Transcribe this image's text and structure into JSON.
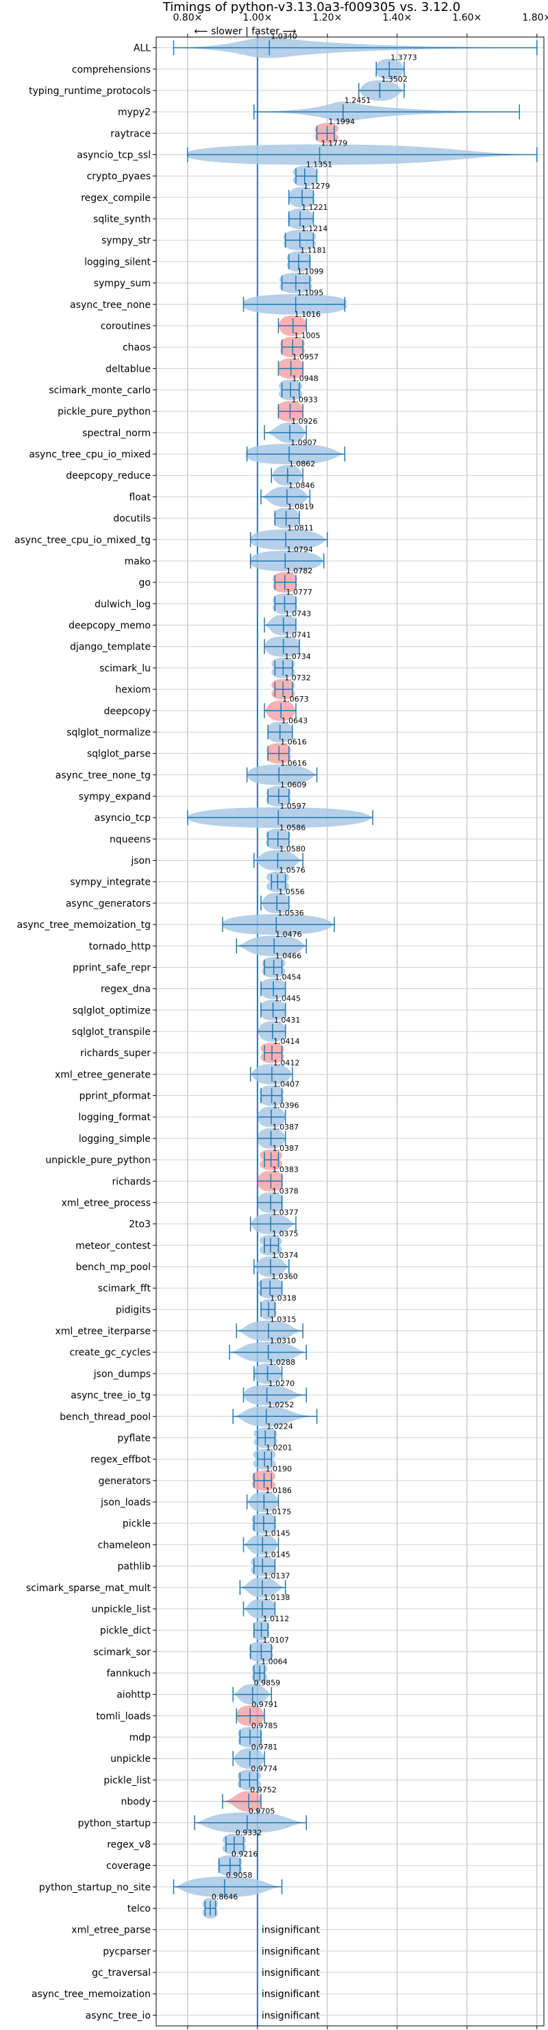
{
  "chart_data": {
    "type": "violin",
    "title": "Timings of python-v3.13.0a3-f009305 vs. 3.12.0",
    "direction_label": "⟵ slower | faster ⟶",
    "x_ticks": [
      {
        "value": 0.8,
        "label": "0.80×"
      },
      {
        "value": 1.0,
        "label": "1.00×"
      },
      {
        "value": 1.2,
        "label": "1.20×"
      },
      {
        "value": 1.4,
        "label": "1.40×"
      },
      {
        "value": 1.6,
        "label": "1.60×"
      },
      {
        "value": 1.8,
        "label": "1.80×"
      }
    ],
    "xlim": [
      0.71,
      1.82
    ],
    "reference_line": 1.0,
    "grid": true,
    "colors": {
      "normal": "#a8c8e4",
      "highlight": "#f4a6a8",
      "line": "#1f77b4"
    },
    "insignificant_label": "insignificant",
    "benchmarks": [
      {
        "name": "ALL",
        "value": 1.034,
        "value_label": "1.0340",
        "min": 0.76,
        "max": 1.8,
        "width": 0.06,
        "highlight": false
      },
      {
        "name": "comprehensions",
        "value": 1.3773,
        "value_label": "1.3773",
        "min": 1.34,
        "max": 1.42,
        "width": 0.03,
        "highlight": false
      },
      {
        "name": "typing_runtime_protocols",
        "value": 1.3502,
        "value_label": "1.3502",
        "min": 1.29,
        "max": 1.42,
        "width": 0.04,
        "highlight": false
      },
      {
        "name": "mypy2",
        "value": 1.2451,
        "value_label": "1.2451",
        "min": 0.99,
        "max": 1.75,
        "width": 0.03,
        "highlight": false
      },
      {
        "name": "raytrace",
        "value": 1.1994,
        "value_label": "1.1994",
        "min": 1.17,
        "max": 1.22,
        "width": 0.03,
        "highlight": true
      },
      {
        "name": "asyncio_tcp_ssl",
        "value": 1.1779,
        "value_label": "1.1779",
        "min": 0.8,
        "max": 1.8,
        "width": 0.3,
        "highlight": false
      },
      {
        "name": "crypto_pyaes",
        "value": 1.1351,
        "value_label": "1.1351",
        "min": 1.11,
        "max": 1.17,
        "width": 0.03,
        "highlight": false
      },
      {
        "name": "regex_compile",
        "value": 1.1279,
        "value_label": "1.1279",
        "min": 1.09,
        "max": 1.16,
        "width": 0.03,
        "highlight": false
      },
      {
        "name": "sqlite_synth",
        "value": 1.1221,
        "value_label": "1.1221",
        "min": 1.09,
        "max": 1.16,
        "width": 0.03,
        "highlight": false
      },
      {
        "name": "sympy_str",
        "value": 1.1214,
        "value_label": "1.1214",
        "min": 1.08,
        "max": 1.16,
        "width": 0.04,
        "highlight": false
      },
      {
        "name": "logging_silent",
        "value": 1.1181,
        "value_label": "1.1181",
        "min": 1.09,
        "max": 1.15,
        "width": 0.03,
        "highlight": false
      },
      {
        "name": "sympy_sum",
        "value": 1.1099,
        "value_label": "1.1099",
        "min": 1.07,
        "max": 1.15,
        "width": 0.04,
        "highlight": false
      },
      {
        "name": "async_tree_none",
        "value": 1.1095,
        "value_label": "1.1095",
        "min": 0.96,
        "max": 1.25,
        "width": 0.12,
        "highlight": false
      },
      {
        "name": "coroutines",
        "value": 1.1016,
        "value_label": "1.1016",
        "min": 1.06,
        "max": 1.14,
        "width": 0.03,
        "highlight": true
      },
      {
        "name": "chaos",
        "value": 1.1005,
        "value_label": "1.1005",
        "min": 1.07,
        "max": 1.13,
        "width": 0.03,
        "highlight": true
      },
      {
        "name": "deltablue",
        "value": 1.0957,
        "value_label": "1.0957",
        "min": 1.06,
        "max": 1.13,
        "width": 0.03,
        "highlight": true
      },
      {
        "name": "scimark_monte_carlo",
        "value": 1.0948,
        "value_label": "1.0948",
        "min": 1.07,
        "max": 1.12,
        "width": 0.03,
        "highlight": false
      },
      {
        "name": "pickle_pure_python",
        "value": 1.0933,
        "value_label": "1.0933",
        "min": 1.06,
        "max": 1.13,
        "width": 0.03,
        "highlight": true
      },
      {
        "name": "spectral_norm",
        "value": 1.0926,
        "value_label": "1.0926",
        "min": 1.02,
        "max": 1.14,
        "width": 0.03,
        "highlight": false
      },
      {
        "name": "async_tree_cpu_io_mixed",
        "value": 1.0907,
        "value_label": "1.0907",
        "min": 0.97,
        "max": 1.25,
        "width": 0.1,
        "highlight": false
      },
      {
        "name": "deepcopy_reduce",
        "value": 1.0862,
        "value_label": "1.0862",
        "min": 1.04,
        "max": 1.13,
        "width": 0.03,
        "highlight": false
      },
      {
        "name": "float",
        "value": 1.0846,
        "value_label": "1.0846",
        "min": 1.01,
        "max": 1.15,
        "width": 0.04,
        "highlight": false
      },
      {
        "name": "docutils",
        "value": 1.0819,
        "value_label": "1.0819",
        "min": 1.05,
        "max": 1.12,
        "width": 0.03,
        "highlight": false
      },
      {
        "name": "async_tree_cpu_io_mixed_tg",
        "value": 1.0811,
        "value_label": "1.0811",
        "min": 0.98,
        "max": 1.2,
        "width": 0.08,
        "highlight": false
      },
      {
        "name": "mako",
        "value": 1.0794,
        "value_label": "1.0794",
        "min": 0.98,
        "max": 1.19,
        "width": 0.08,
        "highlight": false
      },
      {
        "name": "go",
        "value": 1.0782,
        "value_label": "1.0782",
        "min": 1.05,
        "max": 1.11,
        "width": 0.03,
        "highlight": true
      },
      {
        "name": "dulwich_log",
        "value": 1.0777,
        "value_label": "1.0777",
        "min": 1.05,
        "max": 1.11,
        "width": 0.03,
        "highlight": false
      },
      {
        "name": "deepcopy_memo",
        "value": 1.0743,
        "value_label": "1.0743",
        "min": 1.02,
        "max": 1.11,
        "width": 0.03,
        "highlight": false
      },
      {
        "name": "django_template",
        "value": 1.0741,
        "value_label": "1.0741",
        "min": 1.02,
        "max": 1.12,
        "width": 0.04,
        "highlight": false
      },
      {
        "name": "scimark_lu",
        "value": 1.0734,
        "value_label": "1.0734",
        "min": 1.05,
        "max": 1.1,
        "width": 0.03,
        "highlight": false
      },
      {
        "name": "hexiom",
        "value": 1.0732,
        "value_label": "1.0732",
        "min": 1.05,
        "max": 1.1,
        "width": 0.03,
        "highlight": true
      },
      {
        "name": "deepcopy",
        "value": 1.0673,
        "value_label": "1.0673",
        "min": 1.02,
        "max": 1.11,
        "width": 0.03,
        "highlight": true
      },
      {
        "name": "sqlglot_normalize",
        "value": 1.0643,
        "value_label": "1.0643",
        "min": 1.03,
        "max": 1.1,
        "width": 0.03,
        "highlight": false
      },
      {
        "name": "sqlglot_parse",
        "value": 1.0616,
        "value_label": "1.0616",
        "min": 1.03,
        "max": 1.09,
        "width": 0.03,
        "highlight": true
      },
      {
        "name": "async_tree_none_tg",
        "value": 1.0616,
        "value_label": "1.0616",
        "min": 0.97,
        "max": 1.17,
        "width": 0.07,
        "highlight": false
      },
      {
        "name": "sympy_expand",
        "value": 1.0609,
        "value_label": "1.0609",
        "min": 1.03,
        "max": 1.09,
        "width": 0.03,
        "highlight": false
      },
      {
        "name": "asyncio_tcp",
        "value": 1.0597,
        "value_label": "1.0597",
        "min": 0.8,
        "max": 1.33,
        "width": 0.2,
        "highlight": false
      },
      {
        "name": "nqueens",
        "value": 1.0586,
        "value_label": "1.0586",
        "min": 1.03,
        "max": 1.09,
        "width": 0.03,
        "highlight": false
      },
      {
        "name": "json",
        "value": 1.058,
        "value_label": "1.0580",
        "min": 0.99,
        "max": 1.13,
        "width": 0.04,
        "highlight": false
      },
      {
        "name": "sympy_integrate",
        "value": 1.0576,
        "value_label": "1.0576",
        "min": 1.04,
        "max": 1.08,
        "width": 0.03,
        "highlight": false
      },
      {
        "name": "async_generators",
        "value": 1.0556,
        "value_label": "1.0556",
        "min": 1.01,
        "max": 1.09,
        "width": 0.03,
        "highlight": false
      },
      {
        "name": "async_tree_memoization_tg",
        "value": 1.0536,
        "value_label": "1.0536",
        "min": 0.9,
        "max": 1.22,
        "width": 0.12,
        "highlight": false
      },
      {
        "name": "tornado_http",
        "value": 1.0476,
        "value_label": "1.0476",
        "min": 0.94,
        "max": 1.14,
        "width": 0.06,
        "highlight": false
      },
      {
        "name": "pprint_safe_repr",
        "value": 1.0466,
        "value_label": "1.0466",
        "min": 1.02,
        "max": 1.07,
        "width": 0.03,
        "highlight": false
      },
      {
        "name": "regex_dna",
        "value": 1.0454,
        "value_label": "1.0454",
        "min": 1.01,
        "max": 1.08,
        "width": 0.03,
        "highlight": false
      },
      {
        "name": "sqlglot_optimize",
        "value": 1.0445,
        "value_label": "1.0445",
        "min": 1.01,
        "max": 1.08,
        "width": 0.03,
        "highlight": false
      },
      {
        "name": "sqlglot_transpile",
        "value": 1.0431,
        "value_label": "1.0431",
        "min": 1.0,
        "max": 1.08,
        "width": 0.03,
        "highlight": false
      },
      {
        "name": "richards_super",
        "value": 1.0414,
        "value_label": "1.0414",
        "min": 1.02,
        "max": 1.07,
        "width": 0.03,
        "highlight": true
      },
      {
        "name": "xml_etree_generate",
        "value": 1.0412,
        "value_label": "1.0412",
        "min": 0.98,
        "max": 1.1,
        "width": 0.04,
        "highlight": false
      },
      {
        "name": "pprint_pformat",
        "value": 1.0407,
        "value_label": "1.0407",
        "min": 1.01,
        "max": 1.07,
        "width": 0.03,
        "highlight": false
      },
      {
        "name": "logging_format",
        "value": 1.0396,
        "value_label": "1.0396",
        "min": 1.0,
        "max": 1.08,
        "width": 0.03,
        "highlight": false
      },
      {
        "name": "logging_simple",
        "value": 1.0387,
        "value_label": "1.0387",
        "min": 1.0,
        "max": 1.08,
        "width": 0.03,
        "highlight": false
      },
      {
        "name": "unpickle_pure_python",
        "value": 1.0387,
        "value_label": "1.0387",
        "min": 1.02,
        "max": 1.06,
        "width": 0.03,
        "highlight": true
      },
      {
        "name": "richards",
        "value": 1.0383,
        "value_label": "1.0383",
        "min": 1.0,
        "max": 1.07,
        "width": 0.03,
        "highlight": true
      },
      {
        "name": "xml_etree_process",
        "value": 1.0378,
        "value_label": "1.0378",
        "min": 1.0,
        "max": 1.07,
        "width": 0.03,
        "highlight": false
      },
      {
        "name": "2to3",
        "value": 1.0377,
        "value_label": "1.0377",
        "min": 0.98,
        "max": 1.11,
        "width": 0.04,
        "highlight": false
      },
      {
        "name": "meteor_contest",
        "value": 1.0375,
        "value_label": "1.0375",
        "min": 1.02,
        "max": 1.06,
        "width": 0.03,
        "highlight": false
      },
      {
        "name": "bench_mp_pool",
        "value": 1.0374,
        "value_label": "1.0374",
        "min": 0.99,
        "max": 1.09,
        "width": 0.03,
        "highlight": false
      },
      {
        "name": "scimark_fft",
        "value": 1.036,
        "value_label": "1.0360",
        "min": 1.01,
        "max": 1.07,
        "width": 0.03,
        "highlight": false
      },
      {
        "name": "pidigits",
        "value": 1.0318,
        "value_label": "1.0318",
        "min": 1.01,
        "max": 1.05,
        "width": 0.02,
        "highlight": false
      },
      {
        "name": "xml_etree_iterparse",
        "value": 1.0315,
        "value_label": "1.0315",
        "min": 0.94,
        "max": 1.13,
        "width": 0.05,
        "highlight": false
      },
      {
        "name": "create_gc_cycles",
        "value": 1.031,
        "value_label": "1.0310",
        "min": 0.92,
        "max": 1.14,
        "width": 0.06,
        "highlight": false
      },
      {
        "name": "json_dumps",
        "value": 1.0288,
        "value_label": "1.0288",
        "min": 0.99,
        "max": 1.07,
        "width": 0.03,
        "highlight": false
      },
      {
        "name": "async_tree_io_tg",
        "value": 1.027,
        "value_label": "1.0270",
        "min": 0.96,
        "max": 1.14,
        "width": 0.05,
        "highlight": false
      },
      {
        "name": "bench_thread_pool",
        "value": 1.0252,
        "value_label": "1.0252",
        "min": 0.93,
        "max": 1.17,
        "width": 0.05,
        "highlight": false
      },
      {
        "name": "pyflate",
        "value": 1.0224,
        "value_label": "1.0224",
        "min": 1.0,
        "max": 1.05,
        "width": 0.03,
        "highlight": false
      },
      {
        "name": "regex_effbot",
        "value": 1.0201,
        "value_label": "1.0201",
        "min": 1.0,
        "max": 1.04,
        "width": 0.03,
        "highlight": false
      },
      {
        "name": "generators",
        "value": 1.019,
        "value_label": "1.0190",
        "min": 0.99,
        "max": 1.04,
        "width": 0.03,
        "highlight": true
      },
      {
        "name": "json_loads",
        "value": 1.0186,
        "value_label": "1.0186",
        "min": 0.97,
        "max": 1.06,
        "width": 0.03,
        "highlight": false
      },
      {
        "name": "pickle",
        "value": 1.0175,
        "value_label": "1.0175",
        "min": 0.99,
        "max": 1.05,
        "width": 0.03,
        "highlight": false
      },
      {
        "name": "chameleon",
        "value": 1.0145,
        "value_label": "1.0145",
        "min": 0.96,
        "max": 1.06,
        "width": 0.03,
        "highlight": false
      },
      {
        "name": "pathlib",
        "value": 1.0145,
        "value_label": "1.0145",
        "min": 0.99,
        "max": 1.05,
        "width": 0.03,
        "highlight": false
      },
      {
        "name": "scimark_sparse_mat_mult",
        "value": 1.0137,
        "value_label": "1.0137",
        "min": 0.95,
        "max": 1.08,
        "width": 0.03,
        "highlight": false
      },
      {
        "name": "unpickle_list",
        "value": 1.0138,
        "value_label": "1.0138",
        "min": 0.96,
        "max": 1.05,
        "width": 0.03,
        "highlight": false
      },
      {
        "name": "pickle_dict",
        "value": 1.0112,
        "value_label": "1.0112",
        "min": 0.99,
        "max": 1.03,
        "width": 0.02,
        "highlight": false
      },
      {
        "name": "scimark_sor",
        "value": 1.0107,
        "value_label": "1.0107",
        "min": 0.98,
        "max": 1.04,
        "width": 0.03,
        "highlight": false
      },
      {
        "name": "fannkuch",
        "value": 1.0064,
        "value_label": "1.0064",
        "min": 0.99,
        "max": 1.02,
        "width": 0.02,
        "highlight": false
      },
      {
        "name": "aiohttp",
        "value": 0.9859,
        "value_label": "0.9859",
        "min": 0.93,
        "max": 1.04,
        "width": 0.03,
        "highlight": false
      },
      {
        "name": "tomli_loads",
        "value": 0.9791,
        "value_label": "0.9791",
        "min": 0.94,
        "max": 1.02,
        "width": 0.03,
        "highlight": true
      },
      {
        "name": "mdp",
        "value": 0.9785,
        "value_label": "0.9785",
        "min": 0.95,
        "max": 1.01,
        "width": 0.03,
        "highlight": false
      },
      {
        "name": "unpickle",
        "value": 0.9781,
        "value_label": "0.9781",
        "min": 0.93,
        "max": 1.02,
        "width": 0.03,
        "highlight": false
      },
      {
        "name": "pickle_list",
        "value": 0.9774,
        "value_label": "0.9774",
        "min": 0.95,
        "max": 1.0,
        "width": 0.03,
        "highlight": false
      },
      {
        "name": "nbody",
        "value": 0.9752,
        "value_label": "0.9752",
        "min": 0.9,
        "max": 1.01,
        "width": 0.03,
        "highlight": true
      },
      {
        "name": "python_startup",
        "value": 0.9705,
        "value_label": "0.9705",
        "min": 0.82,
        "max": 1.14,
        "width": 0.09,
        "highlight": false
      },
      {
        "name": "regex_v8",
        "value": 0.9332,
        "value_label": "0.9332",
        "min": 0.91,
        "max": 0.96,
        "width": 0.03,
        "highlight": false
      },
      {
        "name": "coverage",
        "value": 0.9216,
        "value_label": "0.9216",
        "min": 0.89,
        "max": 0.95,
        "width": 0.03,
        "highlight": false
      },
      {
        "name": "python_startup_no_site",
        "value": 0.9058,
        "value_label": "0.9058",
        "min": 0.76,
        "max": 1.07,
        "width": 0.09,
        "highlight": false
      },
      {
        "name": "telco",
        "value": 0.8646,
        "value_label": "0.8646",
        "min": 0.85,
        "max": 0.88,
        "width": 0.02,
        "highlight": false
      },
      {
        "name": "xml_etree_parse",
        "value": null,
        "value_label": "",
        "insignificant": true
      },
      {
        "name": "pycparser",
        "value": null,
        "value_label": "",
        "insignificant": true
      },
      {
        "name": "gc_traversal",
        "value": null,
        "value_label": "",
        "insignificant": true
      },
      {
        "name": "async_tree_memoization",
        "value": null,
        "value_label": "",
        "insignificant": true
      },
      {
        "name": "async_tree_io",
        "value": null,
        "value_label": "",
        "insignificant": true
      }
    ]
  }
}
